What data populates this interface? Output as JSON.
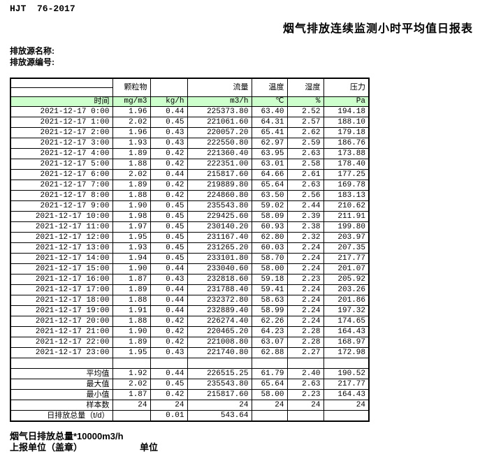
{
  "header": {
    "standard_no": "HJT  76-2017",
    "title": "烟气排放连续监测小时平均值日报表",
    "source_name_label": "排放源名称:",
    "source_id_label": "排放源编号:"
  },
  "table": {
    "group_headers": [
      "",
      "颗粒物",
      "",
      "流量",
      "温度",
      "湿度",
      "压力"
    ],
    "unit_row": [
      "时间",
      "mg/m3",
      "kg/h",
      "m3/h",
      "℃",
      "%",
      "Pa"
    ],
    "rows": [
      {
        "time": "2021-12-17 0:00",
        "values": [
          "1.96",
          "0.44",
          "225373.80",
          "63.40",
          "2.52",
          "194.18"
        ]
      },
      {
        "time": "2021-12-17 1:00",
        "values": [
          "2.02",
          "0.45",
          "221061.60",
          "64.31",
          "2.57",
          "188.10"
        ]
      },
      {
        "time": "2021-12-17 2:00",
        "values": [
          "1.96",
          "0.43",
          "220057.20",
          "65.41",
          "2.62",
          "179.18"
        ]
      },
      {
        "time": "2021-12-17 3:00",
        "values": [
          "1.93",
          "0.43",
          "222550.80",
          "62.97",
          "2.59",
          "186.76"
        ]
      },
      {
        "time": "2021-12-17 4:00",
        "values": [
          "1.89",
          "0.42",
          "221360.40",
          "63.95",
          "2.63",
          "173.88"
        ]
      },
      {
        "time": "2021-12-17 5:00",
        "values": [
          "1.88",
          "0.42",
          "222351.00",
          "63.01",
          "2.58",
          "178.40"
        ]
      },
      {
        "time": "2021-12-17 6:00",
        "values": [
          "2.02",
          "0.44",
          "215817.60",
          "64.66",
          "2.61",
          "177.25"
        ]
      },
      {
        "time": "2021-12-17 7:00",
        "values": [
          "1.89",
          "0.42",
          "219889.80",
          "65.64",
          "2.63",
          "169.78"
        ]
      },
      {
        "time": "2021-12-17 8:00",
        "values": [
          "1.88",
          "0.42",
          "224860.80",
          "63.50",
          "2.56",
          "183.13"
        ]
      },
      {
        "time": "2021-12-17 9:00",
        "values": [
          "1.90",
          "0.45",
          "235543.80",
          "59.02",
          "2.44",
          "210.62"
        ]
      },
      {
        "time": "2021-12-17 10:00",
        "values": [
          "1.98",
          "0.45",
          "229425.60",
          "58.09",
          "2.39",
          "211.91"
        ]
      },
      {
        "time": "2021-12-17 11:00",
        "values": [
          "1.97",
          "0.45",
          "230140.20",
          "60.93",
          "2.38",
          "199.80"
        ]
      },
      {
        "time": "2021-12-17 12:00",
        "values": [
          "1.95",
          "0.45",
          "231167.40",
          "62.80",
          "2.32",
          "203.97"
        ]
      },
      {
        "time": "2021-12-17 13:00",
        "values": [
          "1.93",
          "0.45",
          "231265.20",
          "60.03",
          "2.24",
          "207.35"
        ]
      },
      {
        "time": "2021-12-17 14:00",
        "values": [
          "1.94",
          "0.45",
          "233101.80",
          "58.70",
          "2.24",
          "217.77"
        ]
      },
      {
        "time": "2021-12-17 15:00",
        "values": [
          "1.90",
          "0.44",
          "233040.60",
          "58.00",
          "2.24",
          "201.07"
        ]
      },
      {
        "time": "2021-12-17 16:00",
        "values": [
          "1.87",
          "0.43",
          "232818.60",
          "59.18",
          "2.23",
          "205.92"
        ]
      },
      {
        "time": "2021-12-17 17:00",
        "values": [
          "1.89",
          "0.44",
          "231788.40",
          "59.41",
          "2.24",
          "203.26"
        ]
      },
      {
        "time": "2021-12-17 18:00",
        "values": [
          "1.88",
          "0.44",
          "232372.80",
          "58.63",
          "2.24",
          "201.86"
        ]
      },
      {
        "time": "2021-12-17 19:00",
        "values": [
          "1.91",
          "0.44",
          "232889.40",
          "58.99",
          "2.24",
          "197.32"
        ]
      },
      {
        "time": "2021-12-17 20:00",
        "values": [
          "1.88",
          "0.42",
          "226274.40",
          "62.26",
          "2.24",
          "174.65"
        ]
      },
      {
        "time": "2021-12-17 21:00",
        "values": [
          "1.90",
          "0.42",
          "220465.20",
          "64.23",
          "2.28",
          "164.43"
        ]
      },
      {
        "time": "2021-12-17 22:00",
        "values": [
          "1.89",
          "0.42",
          "221008.80",
          "63.07",
          "2.28",
          "168.97"
        ]
      },
      {
        "time": "2021-12-17 23:00",
        "values": [
          "1.95",
          "0.43",
          "221740.80",
          "62.88",
          "2.27",
          "172.98"
        ]
      }
    ],
    "summary": [
      {
        "label": "",
        "values": [
          "",
          "",
          "",
          "",
          "",
          ""
        ]
      },
      {
        "label": "平均值",
        "values": [
          "1.92",
          "0.44",
          "226515.25",
          "61.79",
          "2.40",
          "190.52"
        ]
      },
      {
        "label": "最大值",
        "values": [
          "2.02",
          "0.45",
          "235543.80",
          "65.64",
          "2.63",
          "217.77"
        ]
      },
      {
        "label": "最小值",
        "values": [
          "1.87",
          "0.42",
          "215817.60",
          "58.00",
          "2.23",
          "164.43"
        ]
      },
      {
        "label": "样本数",
        "values": [
          "24",
          "24",
          "24",
          "24",
          "24",
          "24"
        ]
      },
      {
        "label": "日排放总量（t/d）",
        "values": [
          "",
          "0.01",
          "543.64",
          "",
          "",
          ""
        ]
      }
    ]
  },
  "footer": {
    "total_note": "烟气日排放总量*10000m3/h",
    "report_unit_label": "上报单位（盖章）",
    "unit_label": "单位"
  },
  "colors": {
    "header_green": "#ccffcc",
    "border": "#000000"
  }
}
